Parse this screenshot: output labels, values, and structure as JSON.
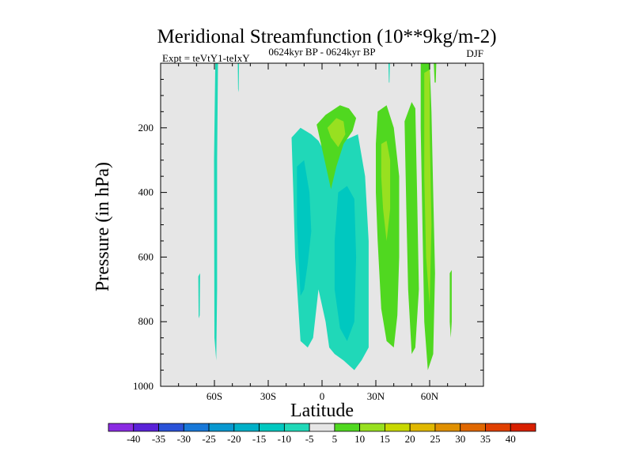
{
  "chart_data": {
    "type": "heatmap",
    "title": "Meridional Streamfunction (10**9kg/m-2)",
    "subtitle": "0624kyr BP - 0624kyr BP",
    "left_annotation": "Expt = teVtY1-teIxY",
    "right_annotation": "DJF",
    "xlabel": "Latitude",
    "ylabel": "Pressure (in hPa)",
    "xlim": [
      -90,
      90
    ],
    "ylim": [
      1000,
      0
    ],
    "x_ticks": [
      {
        "value": -60,
        "label": "60S"
      },
      {
        "value": -30,
        "label": "30S"
      },
      {
        "value": 0,
        "label": "0"
      },
      {
        "value": 30,
        "label": "30N"
      },
      {
        "value": 60,
        "label": "60N"
      }
    ],
    "y_ticks": [
      {
        "value": 200,
        "label": "200"
      },
      {
        "value": 400,
        "label": "400"
      },
      {
        "value": 600,
        "label": "600"
      },
      {
        "value": 800,
        "label": "800"
      },
      {
        "value": 1000,
        "label": "1000"
      }
    ],
    "background_color": "#e6e6e6",
    "colorbar": {
      "labels": [
        "-40",
        "-35",
        "-30",
        "-25",
        "-20",
        "-15",
        "-10",
        "-5",
        "5",
        "10",
        "15",
        "20",
        "25",
        "30",
        "35",
        "40"
      ],
      "colors": [
        "#8a2be2",
        "#5a22d8",
        "#2a52d8",
        "#1878d8",
        "#0898d0",
        "#00b0c8",
        "#00c8c0",
        "#20d8b8",
        "#e6e6e6",
        "#50d820",
        "#98e020",
        "#c8d800",
        "#e0b800",
        "#e09000",
        "#e06800",
        "#e04000",
        "#d82000"
      ]
    },
    "regions": [
      {
        "name": "band-60s-cyan",
        "color": "#20d8b8",
        "points": [
          [
            -59.5,
            0
          ],
          [
            -58,
            0
          ],
          [
            -58.5,
            300
          ],
          [
            -58.5,
            700
          ],
          [
            -59,
            920
          ],
          [
            -60,
            850
          ],
          [
            -60.2,
            300
          ]
        ]
      },
      {
        "name": "spike-50s-cyan",
        "color": "#20d8b8",
        "points": [
          [
            -47,
            0
          ],
          [
            -46.3,
            0
          ],
          [
            -46.5,
            90
          ],
          [
            -46.8,
            80
          ]
        ]
      },
      {
        "name": "spike-70s-cyan",
        "color": "#20d8b8",
        "points": [
          [
            -69,
            660
          ],
          [
            -68,
            650
          ],
          [
            -68.2,
            780
          ],
          [
            -68.8,
            790
          ]
        ]
      },
      {
        "name": "tropical-cyan",
        "color": "#20d8b8",
        "points": [
          [
            -17,
            230
          ],
          [
            -12,
            200
          ],
          [
            -6,
            220
          ],
          [
            -2,
            240
          ],
          [
            4,
            300
          ],
          [
            12,
            240
          ],
          [
            20,
            220
          ],
          [
            24,
            350
          ],
          [
            26,
            550
          ],
          [
            26,
            880
          ],
          [
            22,
            920
          ],
          [
            18,
            950
          ],
          [
            12,
            920
          ],
          [
            7,
            900
          ],
          [
            4,
            880
          ],
          [
            2,
            800
          ],
          [
            -2,
            700
          ],
          [
            -5,
            850
          ],
          [
            -8,
            880
          ],
          [
            -12,
            860
          ],
          [
            -15,
            600
          ],
          [
            -16,
            400
          ]
        ]
      },
      {
        "name": "tropical-blue-left",
        "color": "#00c8c0",
        "points": [
          [
            -14,
            320
          ],
          [
            -10,
            300
          ],
          [
            -7,
            400
          ],
          [
            -6,
            520
          ],
          [
            -8,
            620
          ],
          [
            -10,
            700
          ],
          [
            -12,
            720
          ],
          [
            -14,
            500
          ]
        ]
      },
      {
        "name": "tropical-blue-right",
        "color": "#00c8c0",
        "points": [
          [
            9,
            400
          ],
          [
            14,
            380
          ],
          [
            18,
            420
          ],
          [
            19,
            600
          ],
          [
            18,
            800
          ],
          [
            14,
            860
          ],
          [
            10,
            820
          ],
          [
            7,
            700
          ],
          [
            7,
            550
          ]
        ]
      },
      {
        "name": "nh-green-20n",
        "color": "#50d820",
        "points": [
          [
            -3,
            190
          ],
          [
            2,
            160
          ],
          [
            10,
            130
          ],
          [
            15,
            140
          ],
          [
            19,
            170
          ],
          [
            17,
            210
          ],
          [
            12,
            250
          ],
          [
            8,
            320
          ],
          [
            5,
            390
          ],
          [
            1,
            290
          ]
        ]
      },
      {
        "name": "nh-yellowgreen-20n",
        "color": "#98e020",
        "points": [
          [
            3,
            200
          ],
          [
            8,
            170
          ],
          [
            12,
            180
          ],
          [
            13,
            220
          ],
          [
            9,
            260
          ],
          [
            5,
            230
          ]
        ]
      },
      {
        "name": "nh-green-35n",
        "color": "#50d820",
        "points": [
          [
            31,
            150
          ],
          [
            36,
            130
          ],
          [
            40,
            200
          ],
          [
            43,
            350
          ],
          [
            43,
            600
          ],
          [
            42,
            780
          ],
          [
            40,
            880
          ],
          [
            36,
            860
          ],
          [
            33,
            760
          ],
          [
            31,
            550
          ],
          [
            30,
            400
          ],
          [
            30,
            250
          ]
        ]
      },
      {
        "name": "nh-yellowgreen-35n",
        "color": "#98e020",
        "points": [
          [
            33,
            250
          ],
          [
            36,
            240
          ],
          [
            38,
            300
          ],
          [
            38,
            450
          ],
          [
            36,
            550
          ],
          [
            34,
            450
          ],
          [
            33,
            350
          ]
        ]
      },
      {
        "name": "nh-green-tall",
        "color": "#50d820",
        "points": [
          [
            46,
            180
          ],
          [
            50,
            120
          ],
          [
            52,
            140
          ],
          [
            53,
            400
          ],
          [
            54,
            700
          ],
          [
            52,
            880
          ],
          [
            50,
            900
          ],
          [
            48,
            700
          ],
          [
            47,
            450
          ]
        ]
      },
      {
        "name": "nh-green-60n",
        "color": "#50d820",
        "points": [
          [
            55,
            0
          ],
          [
            60,
            0
          ],
          [
            61,
            150
          ],
          [
            62,
            400
          ],
          [
            63,
            650
          ],
          [
            62,
            900
          ],
          [
            59,
            950
          ],
          [
            57,
            800
          ],
          [
            56,
            500
          ],
          [
            55,
            200
          ]
        ]
      },
      {
        "name": "nh-yellowgreen-60n",
        "color": "#98e020",
        "points": [
          [
            57,
            30
          ],
          [
            60,
            20
          ],
          [
            60,
            200
          ],
          [
            61,
            500
          ],
          [
            60,
            750
          ],
          [
            58,
            600
          ],
          [
            57,
            350
          ]
        ]
      },
      {
        "name": "spike-62n-green",
        "color": "#50d820",
        "points": [
          [
            62.3,
            0
          ],
          [
            63.7,
            0
          ],
          [
            63.4,
            60
          ],
          [
            62.8,
            60
          ]
        ]
      },
      {
        "name": "spike-37n-cyan",
        "color": "#20d8b8",
        "points": [
          [
            37,
            0
          ],
          [
            37.8,
            0
          ],
          [
            37.6,
            60
          ],
          [
            37.3,
            60
          ]
        ]
      },
      {
        "name": "spike-72n-green",
        "color": "#50d820",
        "points": [
          [
            71.2,
            650
          ],
          [
            72.3,
            640
          ],
          [
            72.3,
            800
          ],
          [
            71.8,
            850
          ],
          [
            71.2,
            800
          ]
        ]
      }
    ]
  }
}
